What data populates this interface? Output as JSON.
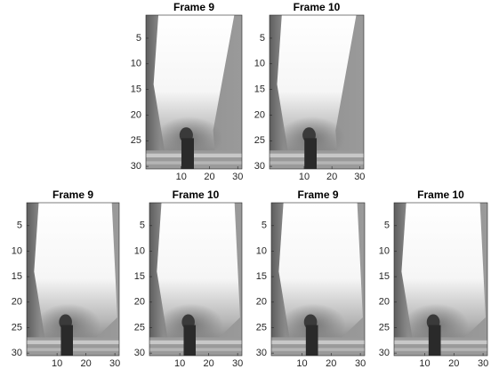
{
  "chart_data": [
    {
      "type": "image",
      "title": "Frame 9",
      "xlim": [
        -2.5,
        31.5
      ],
      "ylim": [
        0.5,
        30.5
      ],
      "xticks": [
        10,
        20,
        30
      ],
      "yticks": [
        5,
        10,
        15,
        20,
        25,
        30
      ]
    },
    {
      "type": "image",
      "title": "Frame 10",
      "xlim": [
        -2.5,
        31.5
      ],
      "ylim": [
        0.5,
        30.5
      ],
      "xticks": [
        10,
        20,
        30
      ],
      "yticks": [
        5,
        10,
        15,
        20,
        25,
        30
      ]
    },
    {
      "type": "image",
      "title": "Frame 9",
      "xlim": [
        -0.5,
        31.5
      ],
      "ylim": [
        0.5,
        30.5
      ],
      "xticks": [
        10,
        20,
        30
      ],
      "yticks": [
        5,
        10,
        15,
        20,
        25,
        30
      ]
    },
    {
      "type": "image",
      "title": "Frame 10",
      "xlim": [
        -0.5,
        31.5
      ],
      "ylim": [
        0.5,
        30.5
      ],
      "xticks": [
        10,
        20,
        30
      ],
      "yticks": [
        5,
        10,
        15,
        20,
        25,
        30
      ]
    },
    {
      "type": "image",
      "title": "Frame 9",
      "xlim": [
        -0.5,
        31.5
      ],
      "ylim": [
        0.5,
        30.5
      ],
      "xticks": [
        10,
        20,
        30
      ],
      "yticks": [
        5,
        10,
        15,
        20,
        25,
        30
      ]
    },
    {
      "type": "image",
      "title": "Frame 10",
      "xlim": [
        -0.5,
        31.5
      ],
      "ylim": [
        0.5,
        30.5
      ],
      "xticks": [
        10,
        20,
        30
      ],
      "yticks": [
        5,
        10,
        15,
        20,
        25,
        30
      ]
    }
  ]
}
